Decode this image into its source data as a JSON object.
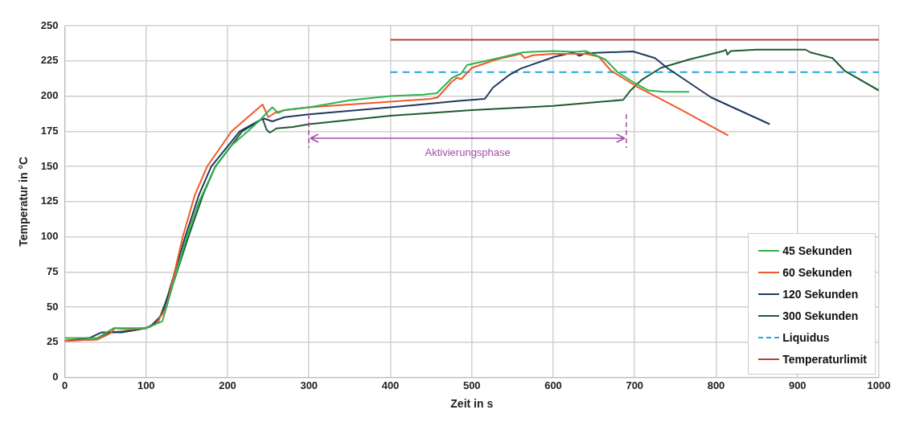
{
  "chart_data": {
    "type": "line",
    "xlabel": "Zeit in s",
    "ylabel": "Temperatur in °C",
    "xlim": [
      0,
      1000
    ],
    "xticks": [
      0,
      100,
      200,
      300,
      400,
      500,
      600,
      700,
      800,
      900,
      1000
    ],
    "ylim": [
      0,
      250
    ],
    "yticks": [
      0,
      25,
      50,
      75,
      100,
      125,
      150,
      175,
      200,
      225,
      250
    ],
    "grid": true,
    "legend": "bottom right",
    "marker": "none",
    "series": [
      {
        "name": "45 Sekunden",
        "color": "#2eb34f",
        "x": [
          0,
          40,
          60,
          100,
          120,
          135,
          150,
          165,
          185,
          205,
          225,
          240,
          248,
          255,
          262,
          270,
          300,
          350,
          400,
          440,
          457,
          476,
          487,
          494,
          525,
          555,
          562,
          573,
          600,
          627,
          640,
          664,
          679,
          698,
          717,
          736,
          767
        ],
        "values": [
          28,
          28,
          35,
          35,
          40,
          70,
          100,
          125,
          150,
          165,
          175,
          183,
          188,
          192,
          188,
          190,
          192,
          197,
          200,
          201,
          202,
          213,
          216,
          222,
          226,
          230,
          231,
          231.5,
          232,
          231.5,
          232,
          226,
          217,
          210,
          204,
          203,
          203
        ]
      },
      {
        "name": "60 Sekunden",
        "color": "#f05a28",
        "x": [
          0,
          40,
          55,
          62,
          80,
          100,
          112,
          125,
          145,
          160,
          175,
          205,
          235,
          243,
          250,
          258,
          270,
          300,
          400,
          450,
          458,
          475,
          482,
          487,
          500,
          530,
          560,
          565,
          575,
          600,
          640,
          656,
          671,
          702,
          755,
          815
        ],
        "values": [
          26,
          27,
          31,
          35,
          34,
          35,
          38,
          50,
          100,
          130,
          150,
          175,
          190,
          194,
          185,
          188,
          190,
          192,
          196,
          198,
          199,
          210,
          213,
          212,
          220,
          226,
          230,
          227,
          229,
          230,
          230,
          228,
          218,
          207,
          191,
          172
        ]
      },
      {
        "name": "120 Sekunden",
        "color": "#1f3a5f",
        "x": [
          0,
          30,
          45,
          70,
          90,
          105,
          120,
          148,
          165,
          180,
          215,
          240,
          245,
          255,
          270,
          300,
          400,
          484,
          516,
          526,
          545,
          560,
          602,
          625,
          632,
          640,
          698,
          725,
          740,
          794,
          866
        ],
        "values": [
          26,
          28,
          32,
          32,
          34,
          36,
          45,
          100,
          130,
          150,
          175,
          183,
          184,
          182,
          185,
          187,
          192,
          196.6,
          198,
          206,
          214.6,
          219.5,
          228,
          231,
          228.6,
          230.5,
          231.7,
          227,
          220,
          199,
          180
        ]
      },
      {
        "name": "300 Sekunden",
        "color": "#1e5a32",
        "x": [
          0,
          40,
          55,
          80,
          100,
          115,
          135,
          152,
          170,
          185,
          218,
          238,
          243,
          248,
          252,
          260,
          280,
          300,
          400,
          500,
          600,
          660,
          686,
          694,
          709,
          732,
          767,
          809,
          812,
          814,
          818,
          850,
          910,
          916,
          943,
          958,
          1000
        ],
        "values": [
          26,
          27,
          32,
          33,
          35,
          40,
          70,
          100,
          130,
          150,
          175,
          182,
          184,
          176,
          174,
          177,
          178,
          180,
          186,
          190,
          193,
          196,
          197.3,
          203.4,
          211.7,
          220,
          226,
          232,
          233,
          229.5,
          232,
          233,
          233,
          231,
          227,
          218,
          204
        ]
      },
      {
        "name": "Liquidus",
        "color": "#29a3e0",
        "line_style": "dashed",
        "x": [
          400,
          1000
        ],
        "values": [
          217,
          217
        ]
      },
      {
        "name": "Temperaturlimit",
        "color": "#b5403a",
        "x": [
          400,
          1000
        ],
        "values": [
          240,
          240
        ]
      }
    ],
    "annotations": [
      "Aktivierungsphase"
    ]
  }
}
